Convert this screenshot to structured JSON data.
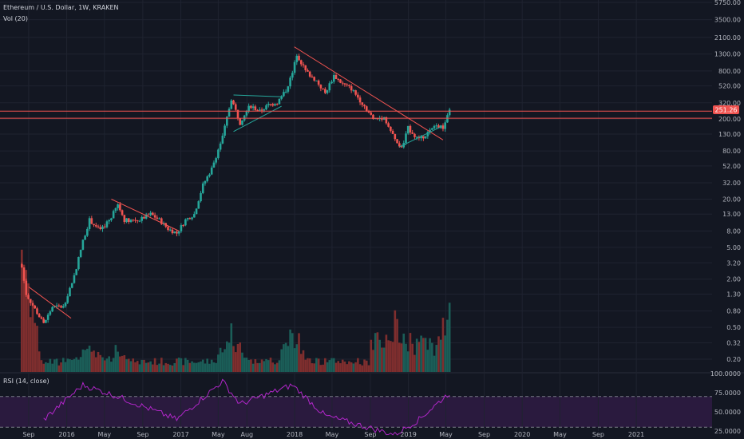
{
  "header": {
    "symbol": "Ethereum / U.S. Dollar, 1W, KRAKEN",
    "volume": "Vol (20)",
    "rsi": "RSI (14, close)"
  },
  "price_label": "251.26",
  "colors": {
    "background": "#131722",
    "grid": "#1f2330",
    "up": "#26a69a",
    "down": "#ef5350",
    "vol_up": "#1b5e58",
    "vol_down": "#7f2e2e",
    "trend_line_green": "#26a69a",
    "trend_line_red": "#ef5350",
    "rsi_line": "#b026c8",
    "rsi_band": "#2a1a3e",
    "price_line": "#ef5350"
  },
  "chart_data": {
    "type": "candlestick",
    "title": "Ethereum / U.S. Dollar, 1W, KRAKEN",
    "y_scale": "log",
    "y_ticks": [
      "5750.00",
      "3500.00",
      "2100.00",
      "1300.00",
      "800.00",
      "520.00",
      "320.00",
      "200.00",
      "130.00",
      "80.00",
      "52.00",
      "32.00",
      "20.00",
      "13.00",
      "8.00",
      "5.00",
      "3.20",
      "2.00",
      "1.30",
      "0.80",
      "0.50",
      "0.32",
      "0.20"
    ],
    "x_ticks": [
      "Sep",
      "2016",
      "May",
      "Sep",
      "2017",
      "May",
      "Aug",
      "2018",
      "May",
      "Sep",
      "2019",
      "May",
      "Sep",
      "2020",
      "May",
      "Sep",
      "2021"
    ],
    "rsi_ticks": [
      "100.0000",
      "75.0000",
      "50.0000",
      "25.0000"
    ],
    "rsi_levels": [
      70,
      30
    ],
    "last_price": 251.26,
    "price_key_points": [
      [
        "2015-08-10",
        2.8
      ],
      [
        "2015-08-24",
        1.3
      ],
      [
        "2015-10-19",
        0.55
      ],
      [
        "2015-11-16",
        0.9
      ],
      [
        "2015-12-21",
        0.9
      ],
      [
        "2016-01-25",
        2.2
      ],
      [
        "2016-02-22",
        6
      ],
      [
        "2016-03-14",
        11
      ],
      [
        "2016-04-18",
        8
      ],
      [
        "2016-05-23",
        12
      ],
      [
        "2016-06-13",
        17
      ],
      [
        "2016-07-04",
        11
      ],
      [
        "2016-08-22",
        11
      ],
      [
        "2016-09-26",
        13
      ],
      [
        "2016-10-24",
        11
      ],
      [
        "2016-11-21",
        8.5
      ],
      [
        "2016-12-19",
        7.5
      ],
      [
        "2017-01-16",
        11
      ],
      [
        "2017-02-13",
        13
      ],
      [
        "2017-03-13",
        30
      ],
      [
        "2017-04-10",
        48
      ],
      [
        "2017-05-15",
        120
      ],
      [
        "2017-06-12",
        360
      ],
      [
        "2017-07-10",
        180
      ],
      [
        "2017-08-07",
        300
      ],
      [
        "2017-09-11",
        250
      ],
      [
        "2017-10-09",
        300
      ],
      [
        "2017-11-06",
        320
      ],
      [
        "2017-12-04",
        460
      ],
      [
        "2017-12-25",
        750
      ],
      [
        "2018-01-08",
        1300
      ],
      [
        "2018-02-05",
        800
      ],
      [
        "2018-03-12",
        600
      ],
      [
        "2018-04-09",
        420
      ],
      [
        "2018-05-07",
        700
      ],
      [
        "2018-06-04",
        550
      ],
      [
        "2018-07-02",
        480
      ],
      [
        "2018-08-13",
        290
      ],
      [
        "2018-09-10",
        200
      ],
      [
        "2018-10-15",
        210
      ],
      [
        "2018-11-19",
        110
      ],
      [
        "2018-12-10",
        85
      ],
      [
        "2018-12-31",
        155
      ],
      [
        "2019-02-04",
        110
      ],
      [
        "2019-03-04",
        135
      ],
      [
        "2019-04-01",
        165
      ],
      [
        "2019-04-22",
        155
      ],
      [
        "2019-05-13",
        251.26
      ]
    ],
    "volume_peaks": [
      [
        "2015-08-10",
        1.0
      ],
      [
        "2016-03-14",
        0.23
      ],
      [
        "2016-06-13",
        0.18
      ],
      [
        "2017-06-12",
        0.28
      ],
      [
        "2017-12-25",
        0.33
      ],
      [
        "2018-11-19",
        0.36
      ],
      [
        "2019-05-13",
        0.45
      ]
    ],
    "rsi_key_points": [
      [
        "2015-10-19",
        40
      ],
      [
        "2016-02-22",
        85
      ],
      [
        "2016-06-13",
        70
      ],
      [
        "2016-12-19",
        40
      ],
      [
        "2017-05-15",
        90
      ],
      [
        "2017-07-10",
        60
      ],
      [
        "2017-12-25",
        85
      ],
      [
        "2018-04-09",
        45
      ],
      [
        "2018-11-19",
        20
      ],
      [
        "2019-02-04",
        40
      ],
      [
        "2019-05-13",
        75
      ]
    ],
    "annotations": [
      {
        "type": "trendline",
        "color": "red",
        "from": [
          "2015-09-01",
          1.6
        ],
        "to": [
          "2016-01-15",
          0.65
        ]
      },
      {
        "type": "trendline",
        "color": "red",
        "from": [
          "2016-05-23",
          20
        ],
        "to": [
          "2016-12-26",
          8
        ]
      },
      {
        "type": "trendline",
        "color": "green",
        "from": [
          "2017-06-19",
          400
        ],
        "to": [
          "2017-11-20",
          380
        ]
      },
      {
        "type": "trendline",
        "color": "green",
        "from": [
          "2017-06-19",
          140
        ],
        "to": [
          "2017-11-20",
          290
        ]
      },
      {
        "type": "trendline",
        "color": "red",
        "from": [
          "2017-12-31",
          1600
        ],
        "to": [
          "2019-04-22",
          110
        ]
      },
      {
        "type": "trendline",
        "color": "green",
        "from": [
          "2018-12-03",
          90
        ],
        "to": [
          "2019-04-15",
          160
        ]
      },
      {
        "type": "horizontal",
        "color": "red",
        "value": 251.26
      },
      {
        "type": "horizontal",
        "color": "red",
        "value": 205
      }
    ]
  }
}
